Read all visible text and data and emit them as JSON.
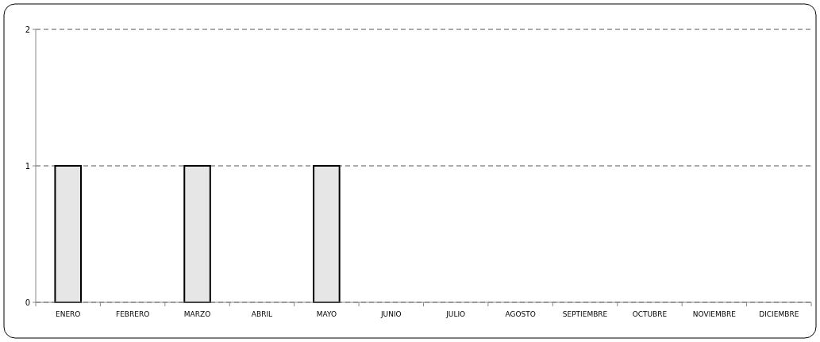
{
  "chart_data": {
    "type": "bar",
    "categories": [
      "ENERO",
      "FEBRERO",
      "MARZO",
      "ABRIL",
      "MAYO",
      "JUNIO",
      "JULIO",
      "AGOSTO",
      "SEPTIEMBRE",
      "OCTUBRE",
      "NOVIEMBRE",
      "DICIEMBRE"
    ],
    "values": [
      1,
      0,
      1,
      0,
      1,
      0,
      0,
      0,
      0,
      0,
      0,
      0
    ],
    "color": "#e6e6e6",
    "ylim": [
      0,
      2
    ],
    "yticks": [
      0,
      1,
      2
    ],
    "grid": "y"
  }
}
